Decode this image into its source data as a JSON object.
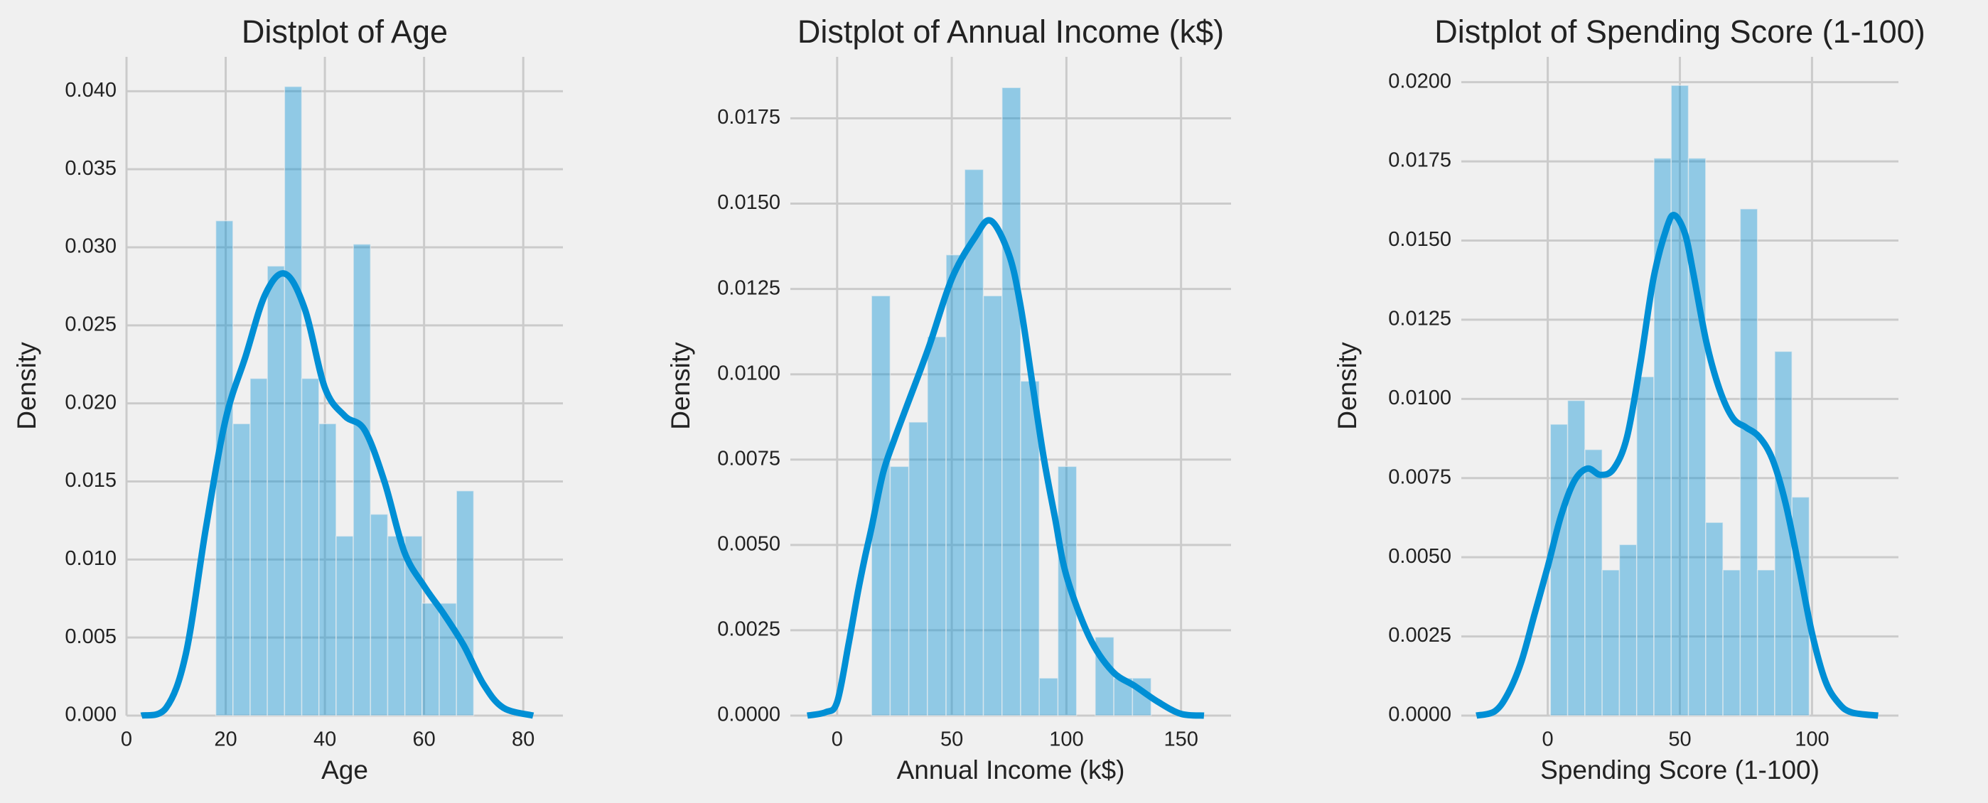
{
  "colors": {
    "background": "#f0f0f0",
    "bar": "#008fd5",
    "kde": "#008fd5",
    "grid": "#cbcbcb",
    "text": "#222222"
  },
  "chart_data": [
    {
      "type": "bar",
      "subtype": "histogram-with-kde",
      "title": "Distplot of Age",
      "xlabel": "Age",
      "ylabel": "Density",
      "xlim": [
        0,
        88
      ],
      "ylim": [
        0,
        0.0422
      ],
      "grid": true,
      "xticks": [
        "0",
        "20",
        "40",
        "60",
        "80"
      ],
      "yticks": [
        "0.000",
        "0.005",
        "0.010",
        "0.015",
        "0.020",
        "0.025",
        "0.030",
        "0.035",
        "0.040"
      ],
      "bins": {
        "start": 18,
        "width": 3.467,
        "values": [
          0.0317,
          0.0187,
          0.0216,
          0.0288,
          0.0403,
          0.0216,
          0.0187,
          0.0115,
          0.0302,
          0.0129,
          0.0115,
          0.0115,
          0.0072,
          0.0072,
          0.0144
        ]
      },
      "kde": {
        "x": [
          3,
          8,
          12,
          16,
          20,
          24,
          28,
          32,
          36,
          40,
          44,
          48,
          52,
          56,
          60,
          64,
          68,
          72,
          76,
          82
        ],
        "y": [
          0.0,
          0.0005,
          0.004,
          0.012,
          0.019,
          0.023,
          0.027,
          0.0283,
          0.026,
          0.021,
          0.0192,
          0.0183,
          0.015,
          0.0105,
          0.0083,
          0.0065,
          0.0045,
          0.002,
          0.0005,
          0.0
        ]
      }
    },
    {
      "type": "bar",
      "subtype": "histogram-with-kde",
      "title": "Distplot of Annual Income (k$)",
      "xlabel": "Annual Income (k$)",
      "ylabel": "Density",
      "xlim": [
        -20.4,
        171.8
      ],
      "ylim": [
        0,
        0.0193
      ],
      "grid": true,
      "xticks": [
        "0",
        "50",
        "100",
        "150"
      ],
      "yticks": [
        "0.0000",
        "0.0025",
        "0.0050",
        "0.0075",
        "0.0100",
        "0.0125",
        "0.0150",
        "0.0175"
      ],
      "bins": {
        "start": 15,
        "width": 8.13,
        "values": [
          0.0123,
          0.0073,
          0.0086,
          0.0111,
          0.0135,
          0.016,
          0.0123,
          0.0184,
          0.0098,
          0.0011,
          0.0073,
          0.0,
          0.0023,
          0.0011,
          0.0011
        ]
      },
      "kde": {
        "x": [
          -13,
          -5,
          0,
          5,
          9,
          12,
          15,
          20,
          25,
          30,
          40,
          50,
          60,
          67,
          75,
          80,
          85,
          90,
          95,
          100,
          110,
          120,
          130,
          140,
          150,
          160
        ],
        "y": [
          0.0,
          0.0001,
          0.0004,
          0.0021,
          0.0036,
          0.0046,
          0.0055,
          0.0071,
          0.0081,
          0.009,
          0.0108,
          0.0128,
          0.014,
          0.0145,
          0.0135,
          0.012,
          0.0098,
          0.0076,
          0.0058,
          0.0041,
          0.0023,
          0.0013,
          0.00086,
          0.0004,
          5e-05,
          0.0
        ]
      }
    },
    {
      "type": "bar",
      "subtype": "histogram-with-kde",
      "title": "Distplot of Spending Score (1-100)",
      "xlabel": "Spending Score (1-100)",
      "ylabel": "Density",
      "xlim": [
        -32.7,
        132.7
      ],
      "ylim": [
        0,
        0.0208
      ],
      "grid": true,
      "xticks": [
        "0",
        "50",
        "100"
      ],
      "yticks": [
        "0.0000",
        "0.0025",
        "0.0050",
        "0.0075",
        "0.0100",
        "0.0125",
        "0.0150",
        "0.0175",
        "0.0200"
      ],
      "bins": {
        "start": 1,
        "width": 6.53,
        "values": [
          0.0092,
          0.00995,
          0.0084,
          0.0046,
          0.0054,
          0.0107,
          0.0176,
          0.0199,
          0.0176,
          0.0061,
          0.0046,
          0.016,
          0.0046,
          0.0115,
          0.0069
        ]
      },
      "kde": {
        "x": [
          -27,
          -20,
          -15,
          -10,
          -5,
          0,
          5,
          10,
          15,
          20,
          25,
          30,
          35,
          40,
          45,
          48,
          52,
          55,
          60,
          65,
          70,
          75,
          80,
          85,
          90,
          95,
          100,
          105,
          110,
          115,
          125
        ],
        "y": [
          0.0,
          0.00014,
          0.0007,
          0.0017,
          0.0032,
          0.0047,
          0.0063,
          0.0074,
          0.0078,
          0.0076,
          0.0078,
          0.0088,
          0.0111,
          0.0138,
          0.0154,
          0.0158,
          0.0152,
          0.014,
          0.0118,
          0.0103,
          0.0094,
          0.0091,
          0.0088,
          0.0081,
          0.0067,
          0.0047,
          0.0026,
          0.0011,
          0.0004,
          0.0001,
          0.0
        ]
      }
    }
  ]
}
